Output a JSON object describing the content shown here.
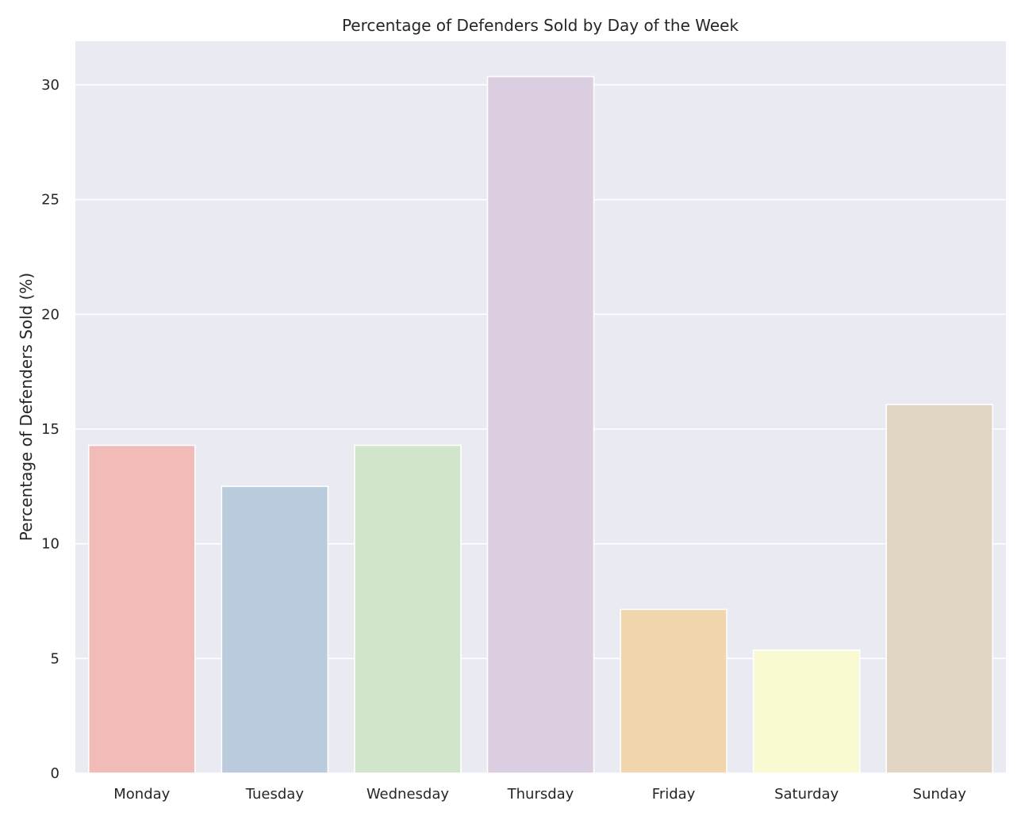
{
  "chart_data": {
    "type": "bar",
    "title": "Percentage of Defenders Sold by Day of the Week",
    "xlabel": "",
    "ylabel": "Percentage of Defenders Sold (%)",
    "categories": [
      "Monday",
      "Tuesday",
      "Wednesday",
      "Thursday",
      "Friday",
      "Saturday",
      "Sunday"
    ],
    "values": [
      14.29,
      12.5,
      14.29,
      30.36,
      7.14,
      5.36,
      16.07
    ],
    "ylim": [
      0,
      31.9
    ],
    "yticks": [
      0,
      5,
      10,
      15,
      20,
      25,
      30
    ],
    "grid": true,
    "legend": "none",
    "colors": [
      "#f1bbb8",
      "#b9cbdd",
      "#d0e5c9",
      "#dbcee0",
      "#f2d6ae",
      "#f9f9d2",
      "#e0d6c3"
    ],
    "background_color": "#eaeaf2",
    "grid_color": "#ffffff",
    "edge_color": "#ffffff"
  }
}
